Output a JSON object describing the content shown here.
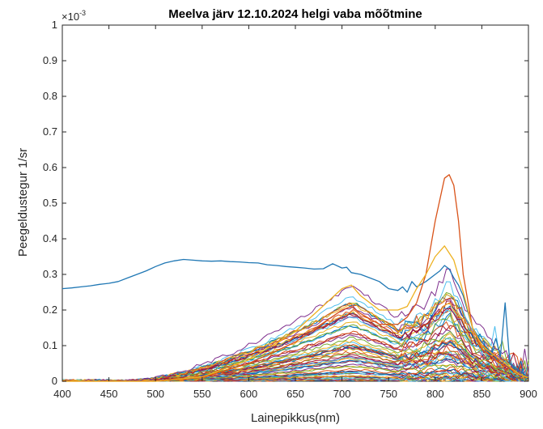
{
  "chart_data": {
    "type": "line",
    "title": "Meelva järv 12.10.2024 helgi vaba mõõtmine",
    "xlabel": "Lainepikkus(nm)",
    "ylabel": "Peegeldustegur 1/sr",
    "y_exponent_label": "×10",
    "y_exponent_power": "-3",
    "xlim": [
      400,
      900
    ],
    "ylim": [
      0,
      1
    ],
    "y_multiplier": 0.001,
    "grid": false,
    "legend": "none",
    "x_ticks": [
      "400",
      "450",
      "500",
      "550",
      "600",
      "650",
      "700",
      "750",
      "800",
      "850",
      "900"
    ],
    "y_ticks": [
      "0",
      "0.1",
      "0.2",
      "0.3",
      "0.4",
      "0.5",
      "0.6",
      "0.7",
      "0.8",
      "0.9",
      "1"
    ],
    "bundle_count": 60,
    "highlighted_series": [
      {
        "color": "#1f77b4",
        "x": [
          400,
          410,
          420,
          430,
          440,
          450,
          460,
          470,
          480,
          490,
          500,
          510,
          520,
          530,
          540,
          550,
          560,
          570,
          580,
          590,
          600,
          610,
          620,
          630,
          640,
          650,
          660,
          670,
          680,
          690,
          700,
          705,
          710,
          720,
          730,
          740,
          750,
          760,
          765,
          770,
          775,
          780,
          790,
          800,
          805,
          810,
          815,
          820,
          825,
          830,
          840,
          850,
          860,
          865,
          870,
          875,
          880,
          890,
          900
        ],
        "values": [
          0.26,
          0.262,
          0.265,
          0.268,
          0.272,
          0.275,
          0.28,
          0.29,
          0.3,
          0.31,
          0.322,
          0.332,
          0.338,
          0.342,
          0.34,
          0.338,
          0.337,
          0.338,
          0.336,
          0.335,
          0.333,
          0.332,
          0.327,
          0.325,
          0.322,
          0.32,
          0.318,
          0.315,
          0.316,
          0.33,
          0.318,
          0.32,
          0.305,
          0.3,
          0.29,
          0.28,
          0.26,
          0.255,
          0.265,
          0.25,
          0.28,
          0.265,
          0.28,
          0.3,
          0.31,
          0.325,
          0.315,
          0.29,
          0.27,
          0.24,
          0.15,
          0.11,
          0.08,
          0.12,
          0.07,
          0.22,
          0.05,
          0.03,
          0.01
        ]
      },
      {
        "color": "#d95319",
        "x": [
          400,
          500,
          550,
          600,
          650,
          700,
          710,
          720,
          740,
          760,
          770,
          780,
          790,
          800,
          810,
          815,
          820,
          825,
          830,
          840,
          850,
          870,
          890,
          900
        ],
        "values": [
          0,
          0,
          0.01,
          0.05,
          0.11,
          0.2,
          0.21,
          0.19,
          0.16,
          0.16,
          0.18,
          0.22,
          0.3,
          0.45,
          0.57,
          0.58,
          0.55,
          0.45,
          0.3,
          0.15,
          0.09,
          0.05,
          0.02,
          0.01
        ]
      },
      {
        "color": "#edb120",
        "x": [
          400,
          500,
          550,
          600,
          650,
          700,
          710,
          720,
          740,
          760,
          770,
          780,
          790,
          800,
          810,
          815,
          820,
          830,
          840,
          850,
          870,
          890,
          900
        ],
        "values": [
          0,
          0,
          0.012,
          0.06,
          0.14,
          0.26,
          0.27,
          0.24,
          0.2,
          0.2,
          0.21,
          0.26,
          0.3,
          0.35,
          0.38,
          0.36,
          0.34,
          0.25,
          0.15,
          0.1,
          0.06,
          0.02,
          0.01
        ]
      }
    ]
  }
}
